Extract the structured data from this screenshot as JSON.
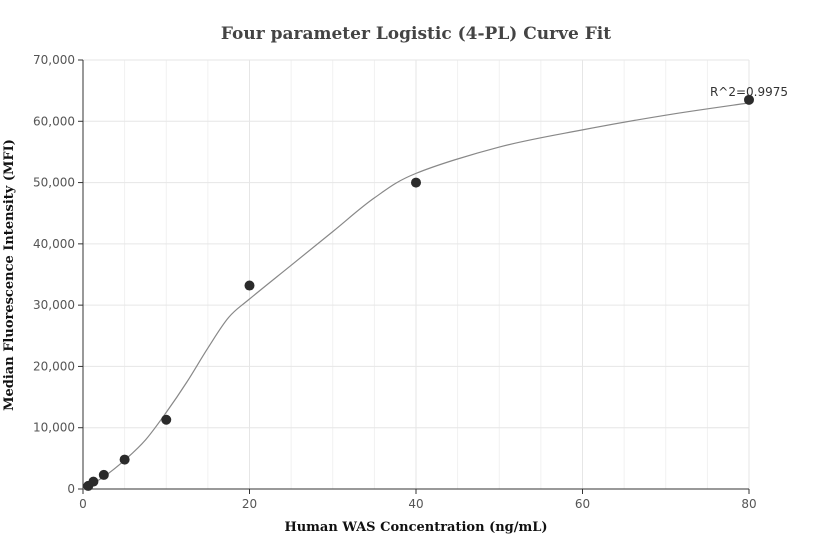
{
  "chart_data": {
    "type": "scatter",
    "title": "Four parameter Logistic (4-PL) Curve Fit",
    "xlabel": "Human WAS Concentration (ng/mL)",
    "ylabel": "Median Fluorescence Intensity (MFI)",
    "xlim": [
      0,
      80
    ],
    "ylim": [
      0,
      70000
    ],
    "x_ticks": [
      0,
      20,
      40,
      60,
      80
    ],
    "y_ticks": [
      0,
      10000,
      20000,
      30000,
      40000,
      50000,
      60000,
      70000
    ],
    "x_tick_labels": [
      "0",
      "20",
      "40",
      "60",
      "80"
    ],
    "y_tick_labels": [
      "0",
      "10,000",
      "20,000",
      "30,000",
      "40,000",
      "50,000",
      "60,000",
      "70,000"
    ],
    "grid": true,
    "points": [
      {
        "x": 0.625,
        "y": 500
      },
      {
        "x": 1.25,
        "y": 1200
      },
      {
        "x": 2.5,
        "y": 2300
      },
      {
        "x": 5,
        "y": 4800
      },
      {
        "x": 10,
        "y": 11300
      },
      {
        "x": 20,
        "y": 33200
      },
      {
        "x": 40,
        "y": 50000
      },
      {
        "x": 80,
        "y": 63500
      }
    ],
    "fit_curve": [
      {
        "x": 0,
        "y": 0
      },
      {
        "x": 2.5,
        "y": 2000
      },
      {
        "x": 5,
        "y": 4700
      },
      {
        "x": 7.5,
        "y": 8000
      },
      {
        "x": 10,
        "y": 12500
      },
      {
        "x": 12.5,
        "y": 17500
      },
      {
        "x": 15,
        "y": 23000
      },
      {
        "x": 17.5,
        "y": 28000
      },
      {
        "x": 20,
        "y": 31000
      },
      {
        "x": 25,
        "y": 36500
      },
      {
        "x": 30,
        "y": 42000
      },
      {
        "x": 35,
        "y": 47500
      },
      {
        "x": 40,
        "y": 51500
      },
      {
        "x": 50,
        "y": 55800
      },
      {
        "x": 60,
        "y": 58600
      },
      {
        "x": 70,
        "y": 61000
      },
      {
        "x": 80,
        "y": 63000
      }
    ],
    "annotation": "R^2=0.9975",
    "colors": {
      "point": "#2b2b2b",
      "curve": "#888888",
      "grid": "#e6e6e6",
      "axis": "#333333"
    }
  }
}
